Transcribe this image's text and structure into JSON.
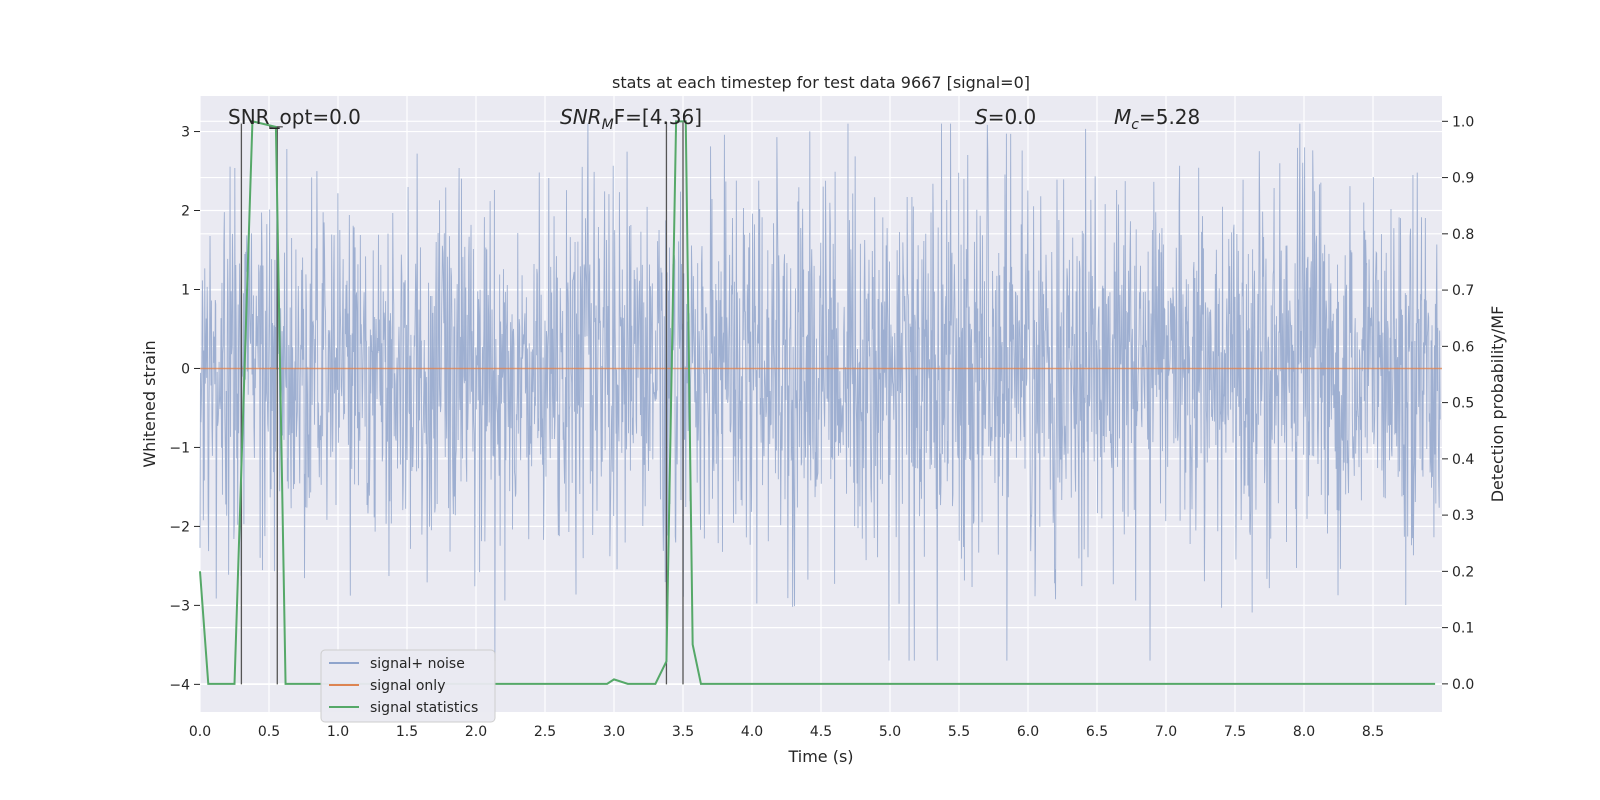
{
  "chart_data": {
    "type": "line",
    "title": "stats at each timestep for test data 9667 [signal=0]",
    "xlabel": "Time (s)",
    "ylabel_left": "Whitened strain",
    "ylabel_right": "Detection probability/MF",
    "xlim": [
      0.0,
      9.0
    ],
    "ylim_left": [
      -4.35,
      3.45
    ],
    "ylim_right": [
      -0.05,
      1.045
    ],
    "xticks": [
      "0.0",
      "0.5",
      "1.0",
      "1.5",
      "2.0",
      "2.5",
      "3.0",
      "3.5",
      "4.0",
      "4.5",
      "5.0",
      "5.5",
      "6.0",
      "6.5",
      "7.0",
      "7.5",
      "8.0",
      "8.5"
    ],
    "yticks_left": [
      "−4",
      "−3",
      "−2",
      "−1",
      "0",
      "1",
      "2",
      "3"
    ],
    "yticks_right": [
      "0.0",
      "0.1",
      "0.2",
      "0.3",
      "0.4",
      "0.5",
      "0.6",
      "0.7",
      "0.8",
      "0.9",
      "1.0"
    ],
    "grid": true,
    "annotations": {
      "snr_opt": "SNR_opt=0.0",
      "snr_mf_name": "SNR",
      "snr_mf_sub": "M",
      "snr_mf_rest": "F=[4.36]",
      "s_name": "S",
      "s_rest": "=0.0",
      "mc_name": "M",
      "mc_sub": "c",
      "mc_rest": "=5.28"
    },
    "legend": {
      "placement": "lower-left",
      "entries": [
        {
          "label": "signal+ noise",
          "color": "#8fa4cc"
        },
        {
          "label": "signal only",
          "color": "#dd8452"
        },
        {
          "label": "signal statistics",
          "color": "#55a868"
        }
      ]
    },
    "series": [
      {
        "name": "signal+ noise",
        "color": "#9aaccf",
        "description": "dense noise, typical envelope ±1.8, peaks ±3.1",
        "amplitude_typical": 1.8,
        "amplitude_peak": 3.1
      },
      {
        "name": "signal only",
        "color": "#dd8452",
        "x": [
          0.0,
          9.0
        ],
        "y": [
          0.0,
          0.0
        ]
      },
      {
        "name": "signal statistics",
        "color": "#55a868",
        "axis": "right",
        "x": [
          0.0,
          0.06,
          0.25,
          0.38,
          0.55,
          0.62,
          2.95,
          3.0,
          3.1,
          3.3,
          3.38,
          3.45,
          3.52,
          3.57,
          3.63,
          8.95
        ],
        "y": [
          0.2,
          0.0,
          0.0,
          1.0,
          0.99,
          0.0,
          0.0,
          0.008,
          0.0,
          0.0,
          0.04,
          1.0,
          1.0,
          0.07,
          0.0,
          0.0
        ]
      }
    ],
    "vertical_markers": [
      {
        "x": 0.3,
        "y_top": 3.1
      },
      {
        "x": 0.56,
        "y_top": 3.06
      },
      {
        "x": 3.38,
        "y_top": 3.12
      },
      {
        "x": 3.5,
        "y_top": 3.12
      }
    ]
  }
}
